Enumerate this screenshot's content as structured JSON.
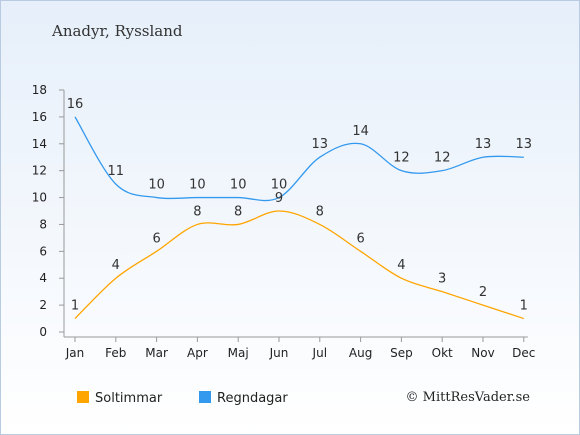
{
  "chart_data": {
    "type": "line",
    "title": "Anadyr, Ryssland",
    "categories": [
      "Jan",
      "Feb",
      "Mar",
      "Apr",
      "Maj",
      "Jun",
      "Jul",
      "Aug",
      "Sep",
      "Okt",
      "Nov",
      "Dec"
    ],
    "ylim": [
      0,
      18
    ],
    "yticks": [
      0,
      2,
      4,
      6,
      8,
      10,
      12,
      14,
      16,
      18
    ],
    "grid": false,
    "legend_position": "bottom-left",
    "series": [
      {
        "name": "Soltimmar",
        "color": "#ffa500",
        "values": [
          1,
          4,
          6,
          8,
          8,
          9,
          8,
          6,
          4,
          3,
          2,
          1
        ]
      },
      {
        "name": "Regndagar",
        "color": "#3399ee",
        "values": [
          16,
          11,
          10,
          10,
          10,
          10,
          13,
          14,
          12,
          12,
          13,
          13
        ]
      }
    ]
  },
  "credit": "© MittResVader.se"
}
